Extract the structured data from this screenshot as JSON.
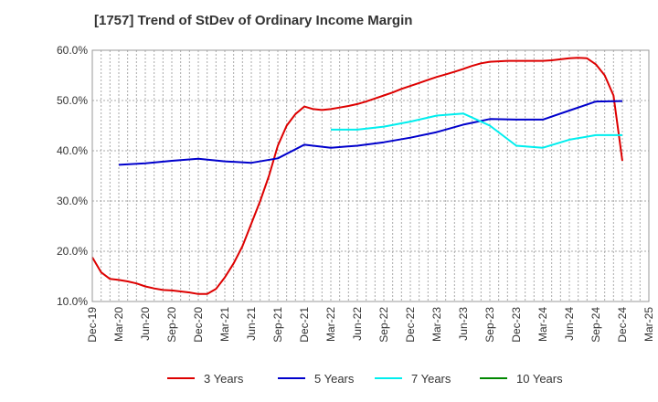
{
  "title": "[1757]  Trend of StDev of Ordinary Income Margin",
  "chart_data": {
    "type": "line",
    "title": "[1757]  Trend of StDev of Ordinary Income Margin",
    "xlabel": "",
    "ylabel": "",
    "x_ticks": [
      "Dec-19",
      "Mar-20",
      "Jun-20",
      "Sep-20",
      "Dec-20",
      "Mar-21",
      "Jun-21",
      "Sep-21",
      "Dec-21",
      "Mar-22",
      "Jun-22",
      "Sep-22",
      "Dec-22",
      "Mar-23",
      "Jun-23",
      "Sep-23",
      "Dec-23",
      "Mar-24",
      "Jun-24",
      "Sep-24",
      "Dec-24",
      "Mar-25"
    ],
    "y_ticks": [
      "10.0%",
      "20.0%",
      "30.0%",
      "40.0%",
      "50.0%",
      "60.0%"
    ],
    "ylim": [
      10,
      60
    ],
    "grid": true,
    "legend_position": "bottom",
    "series": [
      {
        "name": "3 Years",
        "color": "#dd0000",
        "x": [
          "Dec-19",
          "Jan-20",
          "Feb-20",
          "Mar-20",
          "Apr-20",
          "May-20",
          "Jun-20",
          "Jul-20",
          "Aug-20",
          "Sep-20",
          "Oct-20",
          "Nov-20",
          "Dec-20",
          "Jan-21",
          "Feb-21",
          "Mar-21",
          "Apr-21",
          "May-21",
          "Jun-21",
          "Jul-21",
          "Aug-21",
          "Sep-21",
          "Oct-21",
          "Nov-21",
          "Dec-21",
          "Jan-22",
          "Feb-22",
          "Mar-22",
          "Apr-22",
          "May-22",
          "Jun-22",
          "Jul-22",
          "Aug-22",
          "Sep-22",
          "Oct-22",
          "Nov-22",
          "Dec-22",
          "Jan-23",
          "Feb-23",
          "Mar-23",
          "Apr-23",
          "May-23",
          "Jun-23",
          "Jul-23",
          "Aug-23",
          "Sep-23",
          "Oct-23",
          "Nov-23",
          "Dec-23",
          "Jan-24",
          "Feb-24",
          "Mar-24",
          "Apr-24",
          "May-24",
          "Jun-24",
          "Jul-24",
          "Aug-24",
          "Sep-24",
          "Oct-24",
          "Nov-24",
          "Dec-24"
        ],
        "values": [
          18.8,
          15.8,
          14.5,
          14.3,
          14.0,
          13.6,
          13.0,
          12.6,
          12.3,
          12.2,
          12.0,
          11.8,
          11.5,
          11.5,
          12.5,
          14.8,
          17.6,
          21.0,
          25.5,
          30.0,
          35.0,
          41.0,
          45.0,
          47.3,
          48.8,
          48.3,
          48.1,
          48.3,
          48.6,
          48.9,
          49.3,
          49.8,
          50.4,
          51.0,
          51.6,
          52.3,
          52.9,
          53.5,
          54.1,
          54.7,
          55.2,
          55.7,
          56.3,
          56.9,
          57.4,
          57.7,
          57.8,
          57.9,
          57.9,
          57.9,
          57.9,
          57.9,
          58.0,
          58.2,
          58.4,
          58.5,
          58.4,
          57.2,
          55.0,
          51.0,
          38.0
        ]
      },
      {
        "name": "5 Years",
        "color": "#0000cc",
        "x": [
          "Dec-19",
          "Mar-20",
          "Jun-20",
          "Sep-20",
          "Dec-20",
          "Mar-21",
          "Jun-21",
          "Sep-21",
          "Dec-21",
          "Mar-22",
          "Jun-22",
          "Sep-22",
          "Dec-22",
          "Mar-23",
          "Jun-23",
          "Sep-23",
          "Dec-23",
          "Mar-24",
          "Jun-24",
          "Sep-24",
          "Dec-24"
        ],
        "values": [
          null,
          37.2,
          37.5,
          38.0,
          38.4,
          37.9,
          37.6,
          38.5,
          41.2,
          40.6,
          41.0,
          41.7,
          42.6,
          43.7,
          45.2,
          46.3,
          46.2,
          46.2,
          48.0,
          49.8,
          49.9
        ]
      },
      {
        "name": "7 Years",
        "color": "#00eeee",
        "x": [
          "Dec-19",
          "Mar-20",
          "Jun-20",
          "Sep-20",
          "Dec-20",
          "Mar-21",
          "Jun-21",
          "Sep-21",
          "Dec-21",
          "Mar-22",
          "Jun-22",
          "Sep-22",
          "Dec-22",
          "Mar-23",
          "Jun-23",
          "Sep-23",
          "Dec-23",
          "Mar-24",
          "Jun-24",
          "Sep-24",
          "Dec-24"
        ],
        "values": [
          null,
          null,
          null,
          null,
          null,
          null,
          null,
          null,
          null,
          44.2,
          44.2,
          44.8,
          45.8,
          47.0,
          47.4,
          45.0,
          41.0,
          40.6,
          42.2,
          43.1,
          43.1
        ]
      },
      {
        "name": "10 Years",
        "color": "#008800",
        "x": [],
        "values": []
      }
    ]
  }
}
